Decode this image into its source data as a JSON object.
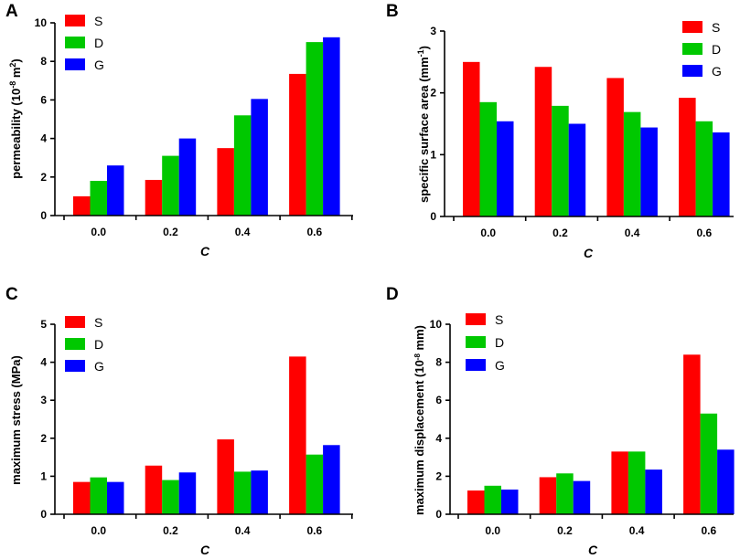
{
  "chart_data": [
    {
      "panel": "A",
      "type": "bar",
      "categories": [
        "0.0",
        "0.2",
        "0.4",
        "0.6"
      ],
      "series": [
        {
          "name": "S",
          "color": "#ff0000",
          "values": [
            1.0,
            1.85,
            3.5,
            7.35
          ]
        },
        {
          "name": "D",
          "color": "#00c800",
          "values": [
            1.8,
            3.1,
            5.2,
            9.0
          ]
        },
        {
          "name": "G",
          "color": "#0000ff",
          "values": [
            2.6,
            4.0,
            6.05,
            9.25
          ]
        }
      ],
      "ylim": [
        0,
        10
      ],
      "yticks": [
        "0",
        "2",
        "4",
        "6",
        "8",
        "10"
      ],
      "ylabel_main": "permeability (10",
      "ylabel_sup1": "-8",
      "ylabel_mid": " m",
      "ylabel_sup2": "2",
      "ylabel_end": ")",
      "xlabel": "C",
      "legend_position": "top-left"
    },
    {
      "panel": "B",
      "type": "bar",
      "categories": [
        "0.0",
        "0.2",
        "0.4",
        "0.6"
      ],
      "series": [
        {
          "name": "S",
          "color": "#ff0000",
          "values": [
            2.5,
            2.42,
            2.24,
            1.92
          ]
        },
        {
          "name": "D",
          "color": "#00c800",
          "values": [
            1.85,
            1.79,
            1.69,
            1.54
          ]
        },
        {
          "name": "G",
          "color": "#0000ff",
          "values": [
            1.54,
            1.5,
            1.44,
            1.36
          ]
        }
      ],
      "ylim": [
        0,
        3
      ],
      "yticks": [
        "0",
        "1",
        "2",
        "3"
      ],
      "ylabel_main": "specific surface area (mm",
      "ylabel_sup1": "-1",
      "ylabel_end": ")",
      "xlabel": "C",
      "legend_position": "top-right"
    },
    {
      "panel": "C",
      "type": "bar",
      "categories": [
        "0.0",
        "0.2",
        "0.4",
        "0.6"
      ],
      "series": [
        {
          "name": "S",
          "color": "#ff0000",
          "values": [
            0.85,
            1.28,
            1.97,
            4.15
          ]
        },
        {
          "name": "D",
          "color": "#00c800",
          "values": [
            0.97,
            0.9,
            1.12,
            1.57
          ]
        },
        {
          "name": "G",
          "color": "#0000ff",
          "values": [
            0.85,
            1.1,
            1.15,
            1.82
          ]
        }
      ],
      "ylim": [
        0,
        5
      ],
      "yticks": [
        "0",
        "1",
        "2",
        "3",
        "4",
        "5"
      ],
      "ylabel_main": "maximum stress (MPa)",
      "xlabel": "C",
      "legend_position": "top-left"
    },
    {
      "panel": "D",
      "type": "bar",
      "categories": [
        "0.0",
        "0.2",
        "0.4",
        "0.6"
      ],
      "series": [
        {
          "name": "S",
          "color": "#ff0000",
          "values": [
            1.25,
            1.95,
            3.3,
            8.4
          ]
        },
        {
          "name": "D",
          "color": "#00c800",
          "values": [
            1.5,
            2.15,
            3.3,
            5.3
          ]
        },
        {
          "name": "G",
          "color": "#0000ff",
          "values": [
            1.3,
            1.75,
            2.35,
            3.4
          ]
        }
      ],
      "ylim": [
        0,
        10
      ],
      "yticks": [
        "0",
        "2",
        "4",
        "6",
        "8",
        "10"
      ],
      "ylabel_main": "maximum displacement (10",
      "ylabel_sup1": "-8",
      "ylabel_end": " mm)",
      "xlabel": "C",
      "legend_position": "top-left"
    }
  ]
}
